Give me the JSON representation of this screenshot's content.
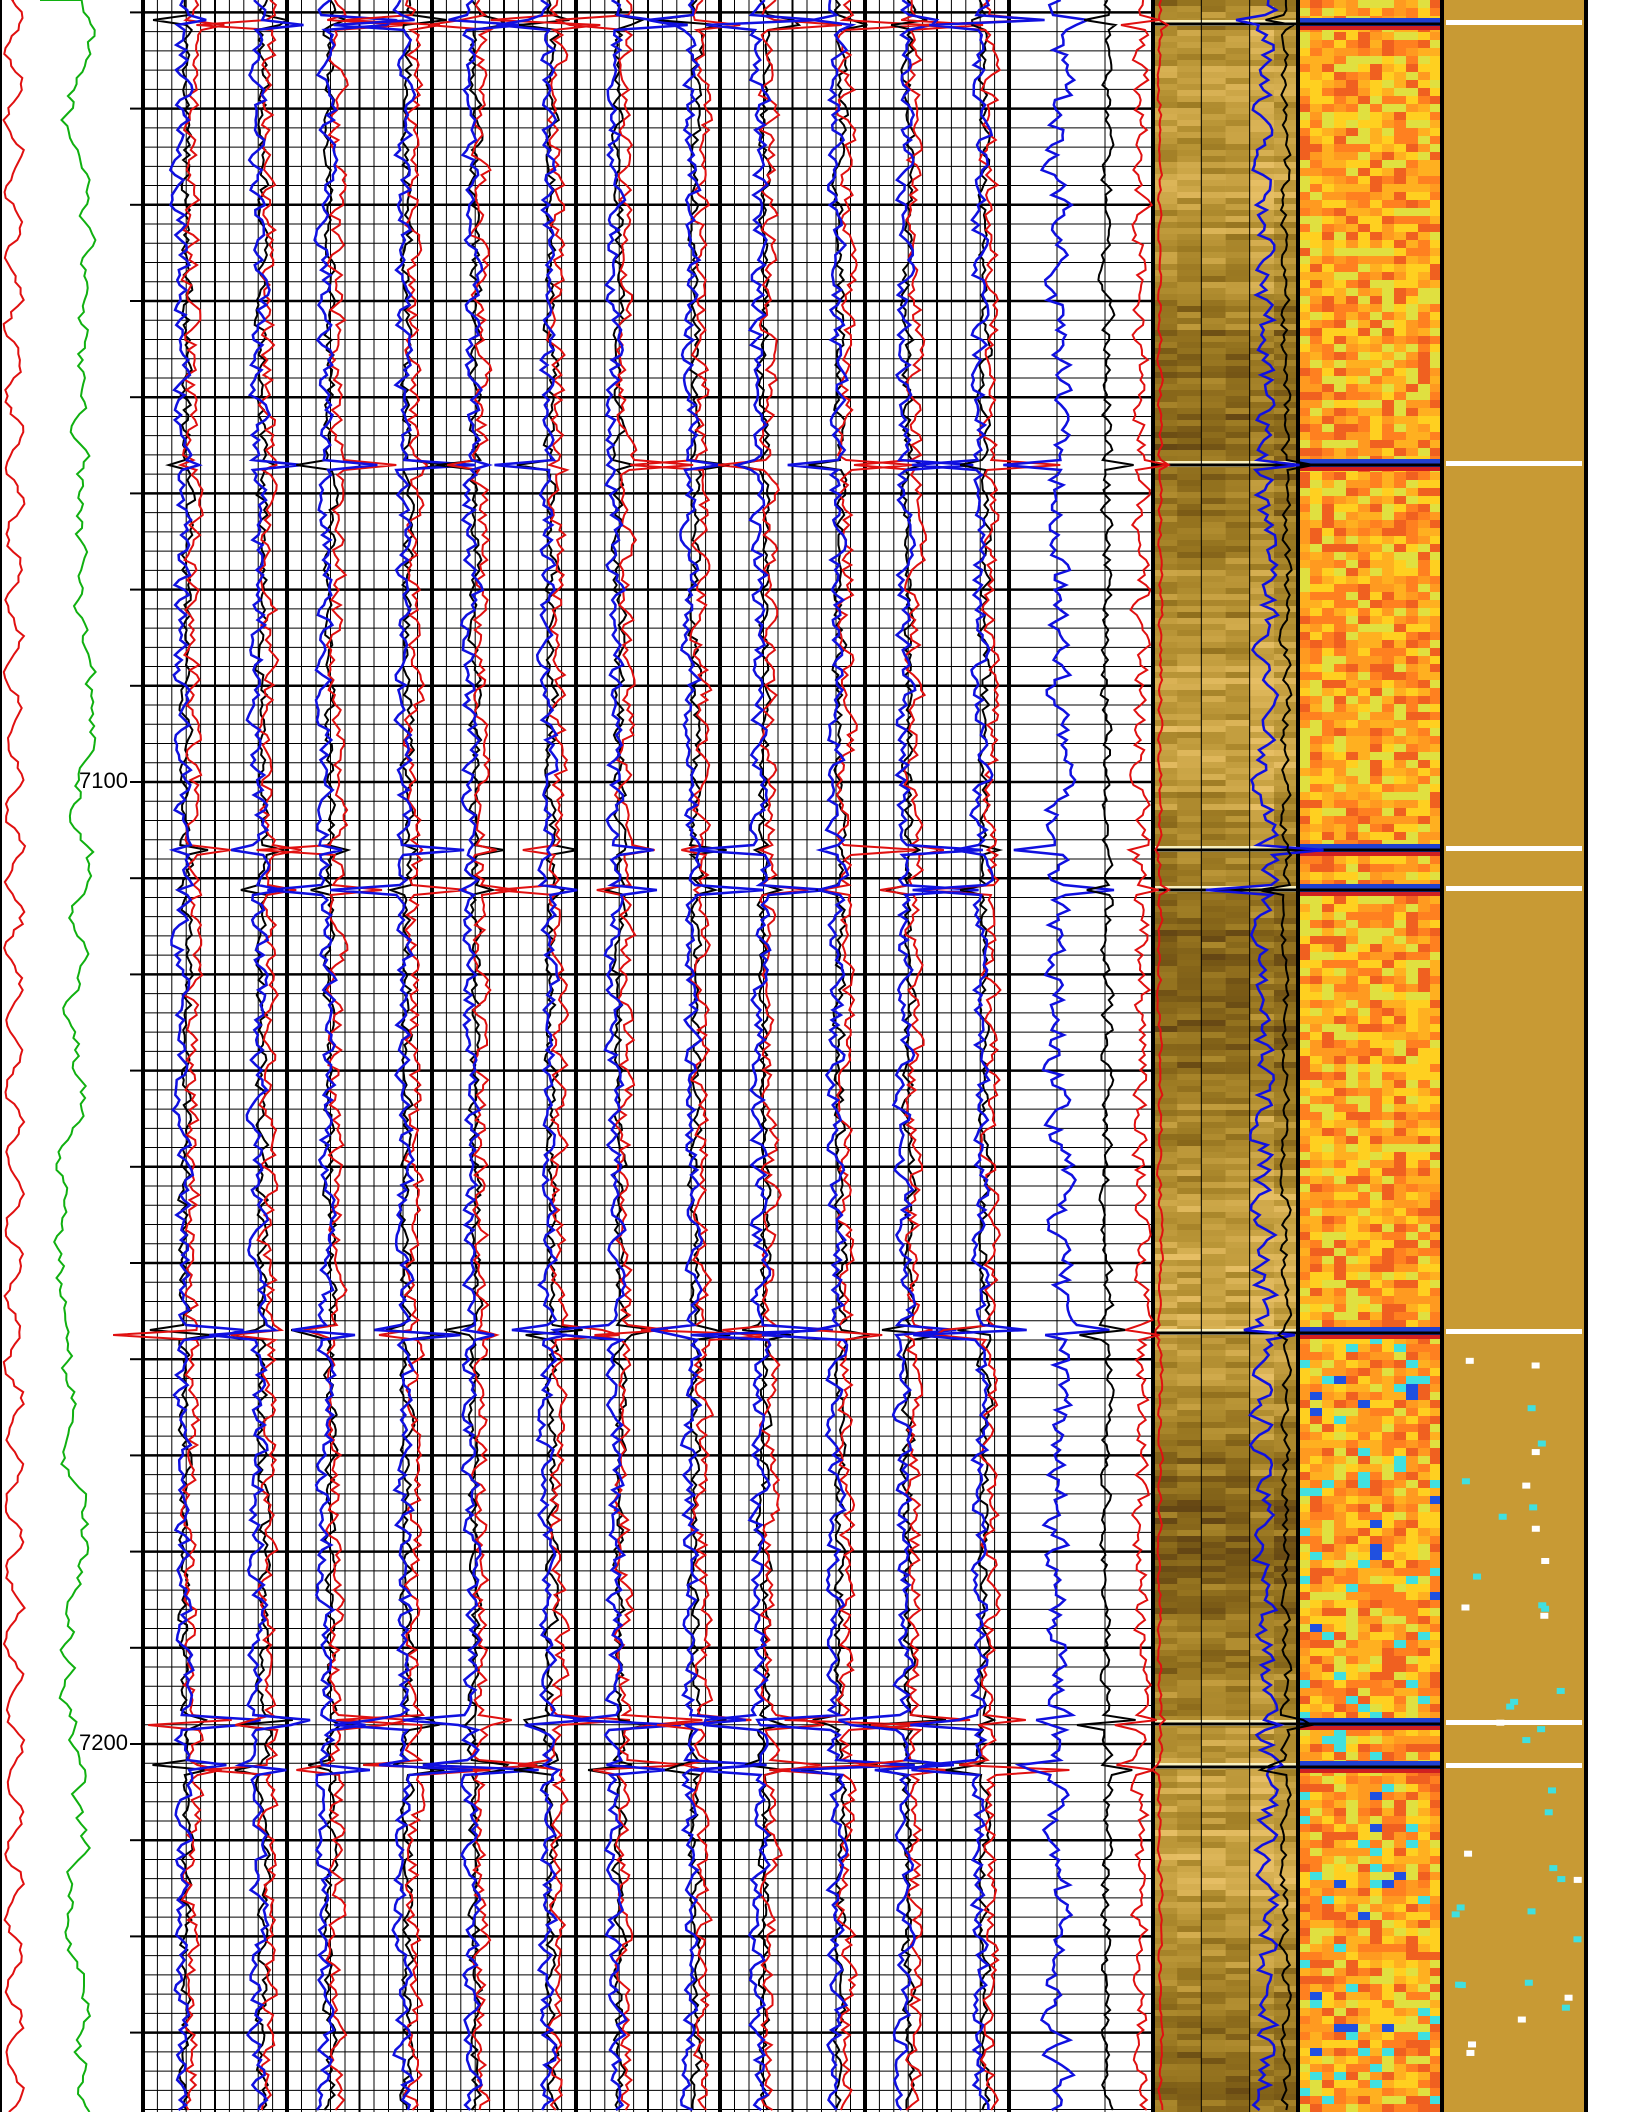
{
  "depth_track": {
    "labels": [
      "7100",
      "7200"
    ]
  }
}
